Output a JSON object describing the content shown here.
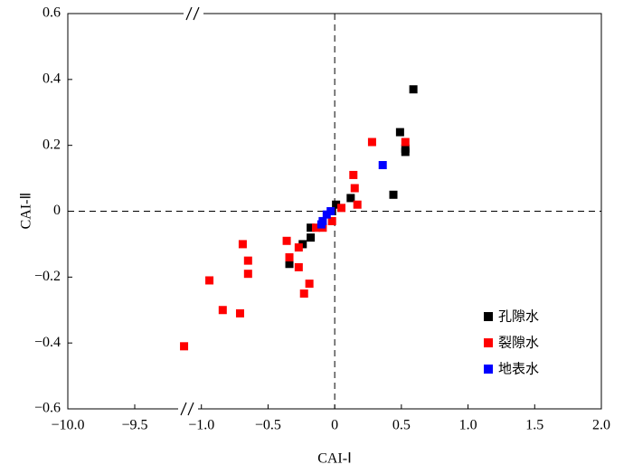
{
  "chart_data": {
    "type": "scatter",
    "xlabel": "CAI-Ⅰ",
    "ylabel": "CAI-Ⅱ",
    "xlim": [
      -10.0,
      2.0
    ],
    "xbreak": [
      -9.5,
      -1.5
    ],
    "ylim": [
      -0.6,
      0.6
    ],
    "xticks": [
      {
        "value": -10.0,
        "label": "−10.0"
      },
      {
        "value": -9.5,
        "label": "−9.5"
      },
      {
        "value": -1.0,
        "label": "−1.0"
      },
      {
        "value": -0.5,
        "label": "−0.5"
      },
      0,
      0.5,
      {
        "value": 1.0,
        "label": "1.0"
      },
      1.5,
      {
        "value": 2.0,
        "label": "2.0"
      }
    ],
    "yticks": [
      0.6,
      0.4,
      0.2,
      0,
      {
        "value": -0.2,
        "label": "−0.2"
      },
      {
        "value": -0.4,
        "label": "−0.4"
      },
      {
        "value": -0.6,
        "label": "−0.6"
      }
    ],
    "legend": "lower right",
    "series": [
      {
        "name": "孔隙水",
        "color": "#000000",
        "x": [
          0.59,
          0.49,
          0.53,
          0.53,
          0.44,
          0.12,
          0.01,
          -0.02,
          -0.18,
          -0.18,
          -0.24,
          -0.34
        ],
        "values": [
          0.37,
          0.24,
          0.18,
          0.19,
          0.05,
          0.04,
          0.02,
          0.0,
          -0.05,
          -0.08,
          -0.1,
          -0.16
        ]
      },
      {
        "name": "裂隙水",
        "color": "#ff0000",
        "x": [
          0.28,
          0.53,
          0.14,
          0.15,
          0.17,
          0.05,
          -0.02,
          -0.09,
          -0.14,
          -0.69,
          -0.36,
          -0.27,
          -0.65,
          -0.65,
          -0.34,
          -0.27,
          -0.94,
          -0.19,
          -0.23,
          -0.84,
          -0.71,
          -1.13
        ],
        "values": [
          0.21,
          0.21,
          0.11,
          0.07,
          0.02,
          0.01,
          -0.03,
          -0.05,
          -0.05,
          -0.1,
          -0.09,
          -0.11,
          -0.15,
          -0.19,
          -0.14,
          -0.17,
          -0.21,
          -0.22,
          -0.25,
          -0.3,
          -0.31,
          -0.41
        ]
      },
      {
        "name": "地表水",
        "color": "#0000ff",
        "x": [
          0.36,
          -0.03,
          -0.06,
          -0.09,
          -0.1
        ],
        "values": [
          0.14,
          0.0,
          -0.01,
          -0.03,
          -0.04
        ]
      }
    ]
  }
}
